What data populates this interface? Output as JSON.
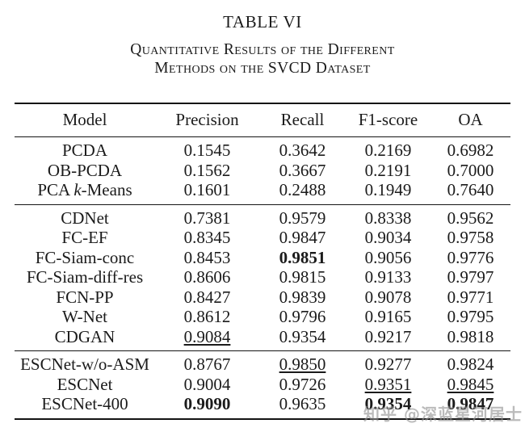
{
  "caption": {
    "number": "TABLE VI",
    "title_line1": "Quantitative Results of the Different",
    "title_line2": "Methods on the SVCD Dataset"
  },
  "table": {
    "columns": [
      "Model",
      "Precision",
      "Recall",
      "F1-score",
      "OA"
    ],
    "groups": [
      {
        "rows": [
          {
            "model": "PCDA",
            "values": [
              {
                "v": "0.1545"
              },
              {
                "v": "0.3642"
              },
              {
                "v": "0.2169"
              },
              {
                "v": "0.6982"
              }
            ]
          },
          {
            "model": "OB-PCDA",
            "values": [
              {
                "v": "0.1562"
              },
              {
                "v": "0.3667"
              },
              {
                "v": "0.2191"
              },
              {
                "v": "0.7000"
              }
            ]
          },
          {
            "model": [
              {
                "text": "PCA ",
                "italic": false
              },
              {
                "text": "k",
                "italic": true
              },
              {
                "text": "-Means",
                "italic": false
              }
            ],
            "values": [
              {
                "v": "0.1601"
              },
              {
                "v": "0.2488"
              },
              {
                "v": "0.1949"
              },
              {
                "v": "0.7640"
              }
            ]
          }
        ]
      },
      {
        "rows": [
          {
            "model": "CDNet",
            "values": [
              {
                "v": "0.7381"
              },
              {
                "v": "0.9579"
              },
              {
                "v": "0.8338"
              },
              {
                "v": "0.9562"
              }
            ]
          },
          {
            "model": "FC-EF",
            "values": [
              {
                "v": "0.8345"
              },
              {
                "v": "0.9847"
              },
              {
                "v": "0.9034"
              },
              {
                "v": "0.9758"
              }
            ]
          },
          {
            "model": "FC-Siam-conc",
            "values": [
              {
                "v": "0.8453"
              },
              {
                "v": "0.9851",
                "style": "bold"
              },
              {
                "v": "0.9056"
              },
              {
                "v": "0.9776"
              }
            ]
          },
          {
            "model": "FC-Siam-diff-res",
            "values": [
              {
                "v": "0.8606"
              },
              {
                "v": "0.9815"
              },
              {
                "v": "0.9133"
              },
              {
                "v": "0.9797"
              }
            ]
          },
          {
            "model": "FCN-PP",
            "values": [
              {
                "v": "0.8427"
              },
              {
                "v": "0.9839"
              },
              {
                "v": "0.9078"
              },
              {
                "v": "0.9771"
              }
            ]
          },
          {
            "model": "W-Net",
            "values": [
              {
                "v": "0.8612"
              },
              {
                "v": "0.9796"
              },
              {
                "v": "0.9165"
              },
              {
                "v": "0.9795"
              }
            ]
          },
          {
            "model": "CDGAN",
            "values": [
              {
                "v": "0.9084",
                "style": "underline"
              },
              {
                "v": "0.9354"
              },
              {
                "v": "0.9217"
              },
              {
                "v": "0.9818"
              }
            ]
          }
        ]
      },
      {
        "rows": [
          {
            "model": "ESCNet-w/o-ASM",
            "values": [
              {
                "v": "0.8767"
              },
              {
                "v": "0.9850",
                "style": "underline"
              },
              {
                "v": "0.9277"
              },
              {
                "v": "0.9824"
              }
            ]
          },
          {
            "model": "ESCNet",
            "values": [
              {
                "v": "0.9004"
              },
              {
                "v": "0.9726"
              },
              {
                "v": "0.9351",
                "style": "underline"
              },
              {
                "v": "0.9845",
                "style": "underline"
              }
            ]
          },
          {
            "model": "ESCNet-400",
            "values": [
              {
                "v": "0.9090",
                "style": "bold"
              },
              {
                "v": "0.9635"
              },
              {
                "v": "0.9354",
                "style": "bold"
              },
              {
                "v": "0.9847",
                "style": "bold"
              }
            ]
          }
        ]
      }
    ]
  },
  "watermark": {
    "text": "知乎 @深蓝星河居士"
  },
  "colors": {
    "text": "#1b1b1b",
    "rule": "#141414",
    "watermark": "#919191"
  }
}
